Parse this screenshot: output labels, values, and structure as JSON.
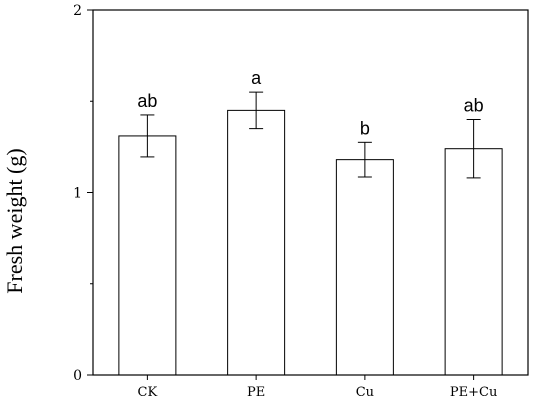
{
  "chart_data": {
    "type": "bar",
    "title": "",
    "xlabel": "",
    "ylabel": "Fresh weight (g)",
    "ylim": [
      0,
      2
    ],
    "yticks": [
      0,
      1,
      2
    ],
    "grid": false,
    "categories": [
      "CK",
      "PE",
      "Cu",
      "PE+Cu"
    ],
    "values": [
      1.31,
      1.45,
      1.18,
      1.24
    ],
    "errors": [
      0.115,
      0.1,
      0.095,
      0.16
    ],
    "significance": [
      "ab",
      "a",
      "b",
      "ab"
    ]
  }
}
